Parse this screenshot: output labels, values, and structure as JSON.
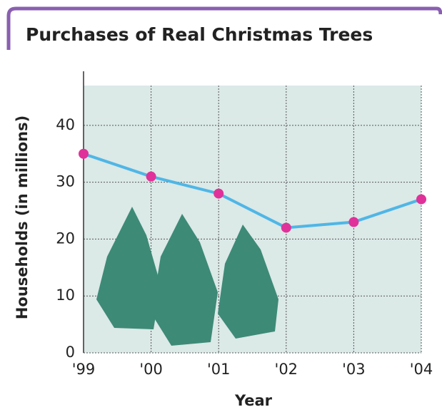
{
  "chart_data": {
    "type": "line",
    "title": "Purchases of Real Christmas Trees",
    "x_label": "Year",
    "y_label": "Households (in millions)",
    "categories": [
      "'99",
      "'00",
      "'01",
      "'02",
      "'03",
      "'04"
    ],
    "values": [
      35,
      31,
      28,
      22,
      23,
      27
    ],
    "color": "#4fb6e6",
    "marker_color": "#e0319a",
    "ylim": [
      0,
      47
    ],
    "yticks": [
      0,
      10,
      20,
      30,
      40
    ],
    "grid": true
  }
}
